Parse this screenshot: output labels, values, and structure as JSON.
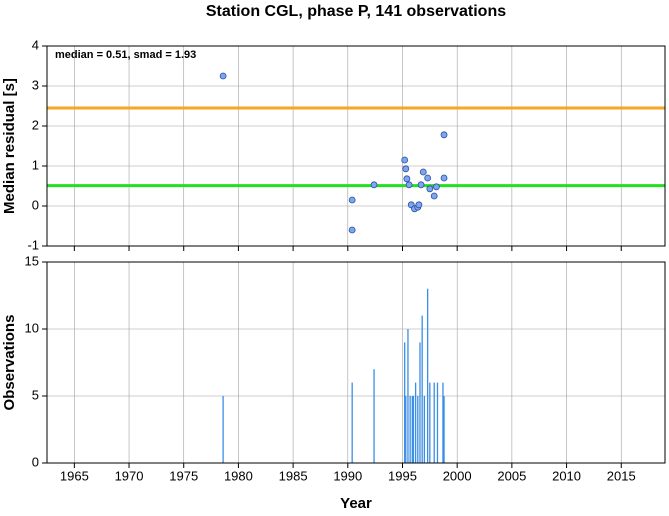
{
  "chart_data": [
    {
      "type": "scatter",
      "title": "Station CGL, phase P, 141 observations",
      "ylabel": "Median residual [s]",
      "annotation": "median = 0.51, smad = 1.93",
      "xlim": [
        1962.5,
        2019
      ],
      "xticks": [
        1965,
        1970,
        1975,
        1980,
        1985,
        1990,
        1995,
        2000,
        2005,
        2010,
        2015
      ],
      "ylim": [
        -1,
        4
      ],
      "yticks": [
        -1,
        0,
        1,
        2,
        3,
        4
      ],
      "grid": true,
      "hlines": [
        {
          "value": 2.45,
          "color": "#f5a623"
        },
        {
          "value": 0.51,
          "color": "#22e01e"
        }
      ],
      "series": [
        {
          "color": "#7ea6f0",
          "x": [
            1978.6,
            1990.4,
            1990.4,
            1992.4,
            1995.2,
            1995.3,
            1995.4,
            1995.6,
            1995.8,
            1996.1,
            1996.4,
            1996.5,
            1996.7,
            1996.9,
            1997.3,
            1997.5,
            1997.9,
            1998.1,
            1998.8,
            1998.8
          ],
          "values": [
            3.25,
            -0.6,
            0.15,
            0.53,
            1.15,
            0.93,
            0.68,
            0.53,
            0.03,
            -0.07,
            -0.03,
            0.03,
            0.53,
            0.85,
            0.7,
            0.43,
            0.25,
            0.48,
            0.7,
            1.78
          ]
        }
      ]
    },
    {
      "type": "bar",
      "ylabel": "Observations",
      "xlabel": "Year",
      "xlim": [
        1962.5,
        2019
      ],
      "xticks": [
        1965,
        1970,
        1975,
        1980,
        1985,
        1990,
        1995,
        2000,
        2005,
        2010,
        2015
      ],
      "ylim": [
        0,
        15
      ],
      "yticks": [
        0,
        5,
        10,
        15
      ],
      "grid": true,
      "series": [
        {
          "color": "#3a8ee6",
          "x": [
            1978.6,
            1990.4,
            1992.4,
            1995.2,
            1995.3,
            1995.5,
            1995.7,
            1995.9,
            1996.0,
            1996.2,
            1996.4,
            1996.6,
            1996.8,
            1997.0,
            1997.3,
            1997.5,
            1997.9,
            1998.2,
            1998.7,
            1998.8
          ],
          "values": [
            5,
            6,
            7,
            9,
            5,
            10,
            5,
            5,
            5,
            6,
            5,
            9,
            11,
            5,
            13,
            6,
            6,
            6,
            6,
            5
          ]
        }
      ]
    }
  ]
}
